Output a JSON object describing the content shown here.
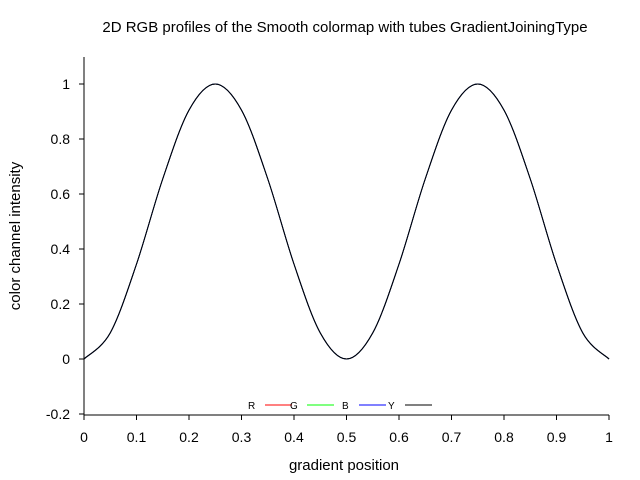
{
  "chart_data": {
    "type": "line",
    "title": "2D RGB profiles of the Smooth colormap with tubes GradientJoiningType",
    "xlabel": "gradient position",
    "ylabel": "color channel intensity",
    "xlim": [
      0,
      1
    ],
    "ylim": [
      -0.2,
      1.1
    ],
    "x_ticks": [
      0,
      0.1,
      0.2,
      0.3,
      0.4,
      0.5,
      0.6,
      0.7,
      0.8,
      0.9,
      1
    ],
    "x_tick_labels": [
      "0",
      "0.1",
      "0.2",
      "0.3",
      "0.4",
      "0.5",
      "0.6",
      "0.7",
      "0.8",
      "0.9",
      "1"
    ],
    "y_ticks": [
      -0.2,
      0,
      0.2,
      0.4,
      0.6,
      0.8,
      1
    ],
    "y_tick_labels": [
      "-0.2",
      "0",
      "0.2",
      "0.4",
      "0.6",
      "0.8",
      "1"
    ],
    "grid": false,
    "legend_position": "bottom-center",
    "series": [
      {
        "name": "R",
        "color": "#ff0000",
        "x": [
          0,
          0.05,
          0.1,
          0.15,
          0.2,
          0.25,
          0.3,
          0.35,
          0.4,
          0.45,
          0.5,
          0.55,
          0.6,
          0.65,
          0.7,
          0.75,
          0.8,
          0.85,
          0.9,
          0.95,
          1
        ],
        "y": [
          0,
          0.095,
          0.345,
          0.655,
          0.905,
          1,
          0.905,
          0.655,
          0.345,
          0.095,
          0,
          0.095,
          0.345,
          0.655,
          0.905,
          1,
          0.905,
          0.655,
          0.345,
          0.095,
          0
        ]
      },
      {
        "name": "G",
        "color": "#00ff00",
        "x": [
          0,
          0.05,
          0.1,
          0.15,
          0.2,
          0.25,
          0.3,
          0.35,
          0.4,
          0.45,
          0.5,
          0.55,
          0.6,
          0.65,
          0.7,
          0.75,
          0.8,
          0.85,
          0.9,
          0.95,
          1
        ],
        "y": [
          0,
          0.095,
          0.345,
          0.655,
          0.905,
          1,
          0.905,
          0.655,
          0.345,
          0.095,
          0,
          0.095,
          0.345,
          0.655,
          0.905,
          1,
          0.905,
          0.655,
          0.345,
          0.095,
          0
        ]
      },
      {
        "name": "B",
        "color": "#0000ff",
        "x": [
          0,
          0.05,
          0.1,
          0.15,
          0.2,
          0.25,
          0.3,
          0.35,
          0.4,
          0.45,
          0.5,
          0.55,
          0.6,
          0.65,
          0.7,
          0.75,
          0.8,
          0.85,
          0.9,
          0.95,
          1
        ],
        "y": [
          0,
          0.095,
          0.345,
          0.655,
          0.905,
          1,
          0.905,
          0.655,
          0.345,
          0.095,
          0,
          0.095,
          0.345,
          0.655,
          0.905,
          1,
          0.905,
          0.655,
          0.345,
          0.095,
          0
        ]
      },
      {
        "name": "Y",
        "color": "#000000",
        "x": [
          0,
          0.05,
          0.1,
          0.15,
          0.2,
          0.25,
          0.3,
          0.35,
          0.4,
          0.45,
          0.5,
          0.55,
          0.6,
          0.65,
          0.7,
          0.75,
          0.8,
          0.85,
          0.9,
          0.95,
          1
        ],
        "y": [
          0,
          0.095,
          0.345,
          0.655,
          0.905,
          1,
          0.905,
          0.655,
          0.345,
          0.095,
          0,
          0.095,
          0.345,
          0.655,
          0.905,
          1,
          0.905,
          0.655,
          0.345,
          0.095,
          0
        ]
      }
    ]
  }
}
